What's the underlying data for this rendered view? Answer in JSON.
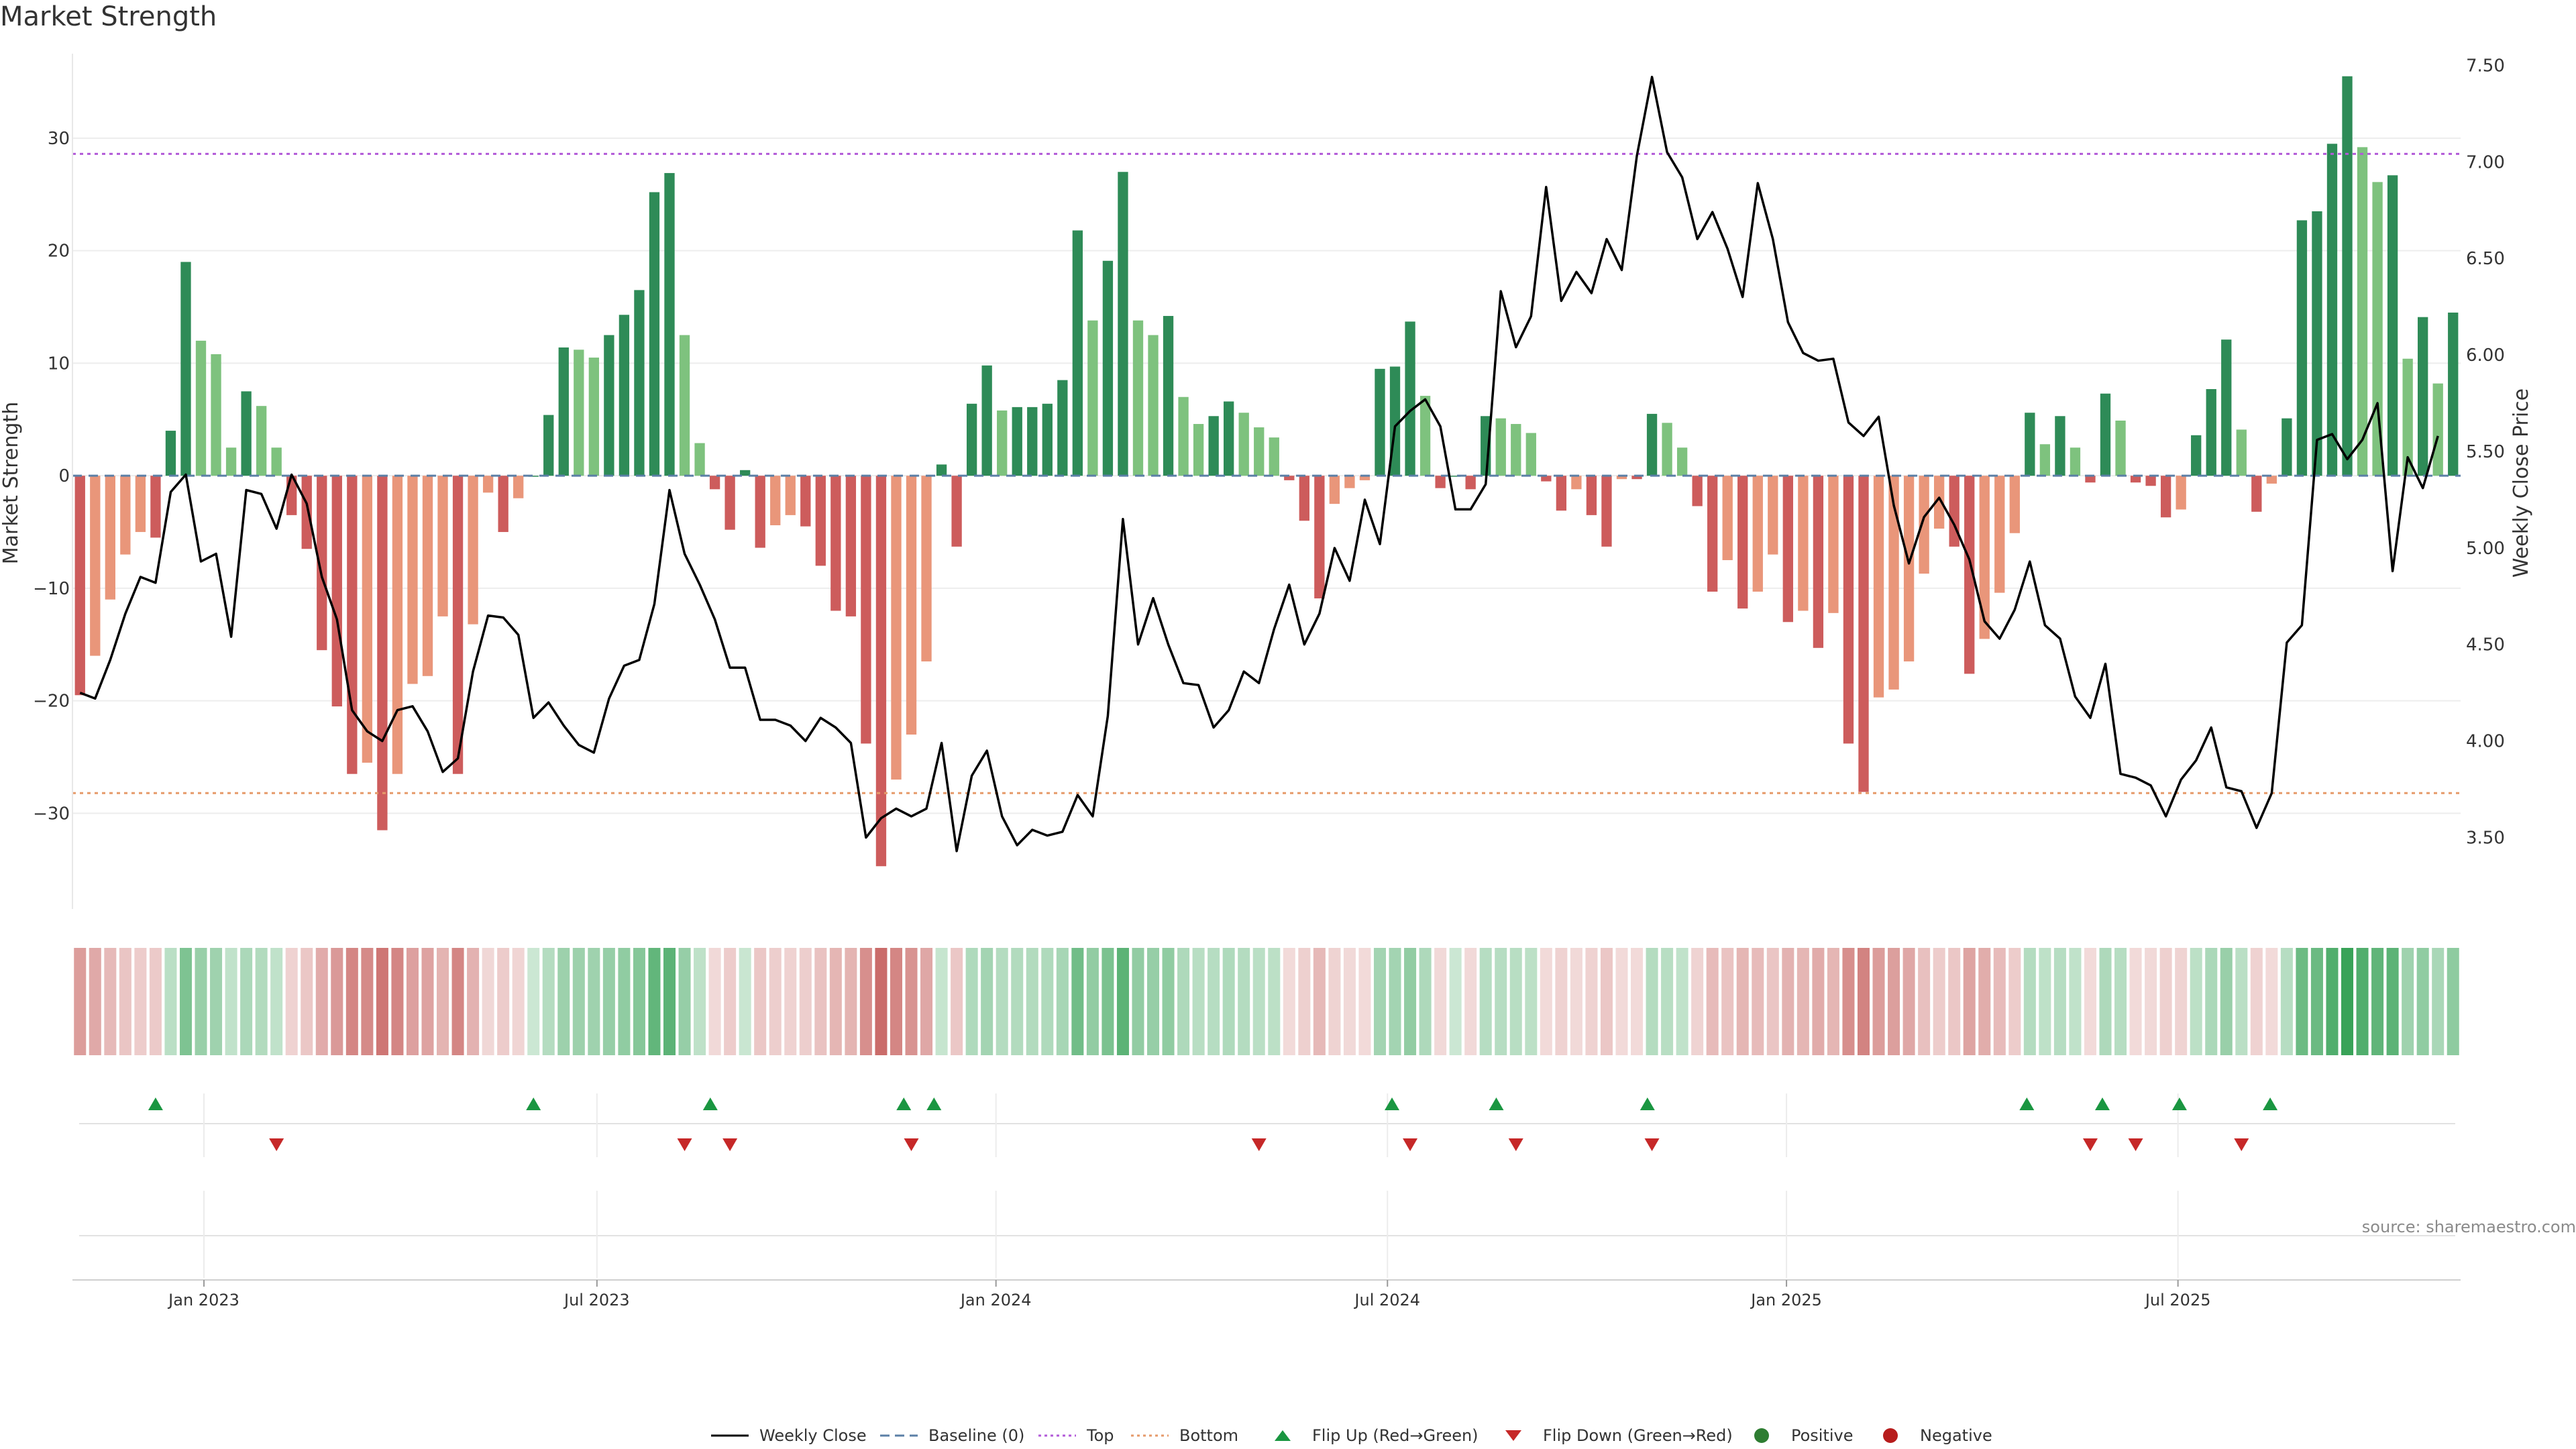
{
  "title": "Market Strength",
  "source_note": "source: sharemaestro.com",
  "legend": [
    {
      "key": "weekly_close",
      "label": "Weekly Close",
      "icon": "solid-line",
      "color": "#000000"
    },
    {
      "key": "baseline",
      "label": "Baseline (0)",
      "icon": "dashed-line",
      "color": "#5b7fa6"
    },
    {
      "key": "top",
      "label": "Top",
      "icon": "dotted-line",
      "color": "#b25ad8"
    },
    {
      "key": "bottom",
      "label": "Bottom",
      "icon": "dotted-line",
      "color": "#e69a6a"
    },
    {
      "key": "flip_up",
      "label": "Flip Up (Red→Green)",
      "icon": "triangle-up",
      "color": "#1a9641"
    },
    {
      "key": "flip_down",
      "label": "Flip Down (Green→Red)",
      "icon": "triangle-down",
      "color": "#c62828"
    },
    {
      "key": "positive",
      "label": "Positive",
      "icon": "circle",
      "color": "#2e7d32"
    },
    {
      "key": "negative",
      "label": "Negative",
      "icon": "circle",
      "color": "#b71c1c"
    }
  ],
  "chart_data": {
    "type": "bar",
    "title": "Market Strength",
    "ylabel": "Market Strength",
    "y2label": "Weekly Close Price",
    "ylim": [
      -38.5,
      38.7
    ],
    "y2lim": [
      3.13,
      7.63
    ],
    "yticks": [
      -30,
      -20,
      -10,
      0,
      10,
      20,
      30
    ],
    "y2ticks": [
      3.5,
      4.0,
      4.5,
      5.0,
      5.5,
      6.0,
      6.5,
      7.0,
      7.5
    ],
    "top_threshold": 28.6,
    "bottom_threshold": -28.2,
    "xticks": [
      {
        "label": "Jan 2023",
        "week": 8.7
      },
      {
        "label": "Jul 2023",
        "week": 34.7
      },
      {
        "label": "Jan 2024",
        "week": 61.1
      },
      {
        "label": "Jul 2024",
        "week": 87.0
      },
      {
        "label": "Jan 2025",
        "week": 113.4
      },
      {
        "label": "Jul 2025",
        "week": 139.3
      }
    ],
    "x_range": [
      0,
      158
    ],
    "first_week": "2022-11-06",
    "strength": [
      -19.5,
      -16,
      -11,
      -7,
      -5,
      -5.5,
      4,
      19,
      12,
      10.8,
      2.5,
      7.5,
      6.2,
      2.5,
      -3.5,
      -6.5,
      -15.5,
      -20.5,
      -26.5,
      -25.5,
      -31.5,
      -26.5,
      -18.5,
      -17.8,
      -12.5,
      -26.5,
      -13.2,
      -1.5,
      -5,
      -2,
      0,
      5.4,
      11.4,
      11.2,
      10.5,
      12.5,
      14.3,
      16.5,
      25.2,
      26.9,
      12.5,
      2.9,
      -1.2,
      -4.8,
      0.5,
      -6.4,
      -4.4,
      -3.5,
      -4.5,
      -8,
      -12,
      -12.5,
      -23.8,
      -34.7,
      -27,
      -23,
      -16.5,
      1,
      -6.3,
      6.4,
      9.8,
      5.8,
      6.1,
      6.1,
      6.4,
      8.5,
      21.8,
      13.8,
      19.1,
      27,
      13.8,
      12.5,
      14.2,
      7,
      4.6,
      5.3,
      6.6,
      5.6,
      4.3,
      3.4,
      -0.4,
      -4,
      -10.9,
      -2.5,
      -1.1,
      -0.4,
      9.5,
      9.7,
      13.7,
      7.1,
      -1.1,
      0,
      -1.2,
      5.3,
      5.1,
      4.6,
      3.8,
      -0.5,
      -3.1,
      -1.2,
      -3.5,
      -6.3,
      -0.3,
      -0.3,
      5.5,
      4.7,
      2.5,
      -2.7,
      -10.3,
      -7.5,
      -11.8,
      -10.3,
      -7,
      -13,
      -12,
      -15.3,
      -12.2,
      -23.8,
      -28.1,
      -19.7,
      -19,
      -16.5,
      -8.7,
      -4.7,
      -6.3,
      -17.6,
      -14.5,
      -10.4,
      -5.1,
      5.6,
      2.8,
      5.3,
      2.5,
      -0.6,
      7.3,
      4.9,
      -0.6,
      -0.9,
      -3.7,
      -3,
      3.6,
      7.7,
      12.1,
      4.1,
      -3.2,
      -0.7,
      5.1,
      22.7,
      23.5,
      29.5,
      35.5,
      29.2,
      26.1,
      26.7,
      10.4,
      14.1,
      8.2,
      14.5
    ],
    "strength_colors_by_sign": {
      "positive_strong": "#2e8b57",
      "positive_weak": "#7ec27e",
      "negative_strong": "#cd5c5c",
      "negative_weak": "#e9967a"
    },
    "weekly_close": [
      4.25,
      4.22,
      4.42,
      4.66,
      4.85,
      4.82,
      5.29,
      5.38,
      4.93,
      4.97,
      4.54,
      5.3,
      5.28,
      5.1,
      5.38,
      5.23,
      4.85,
      4.63,
      4.16,
      4.05,
      4.0,
      4.16,
      4.18,
      4.05,
      3.84,
      3.91,
      4.36,
      4.65,
      4.64,
      4.55,
      4.12,
      4.2,
      4.08,
      3.98,
      3.94,
      4.22,
      4.39,
      4.42,
      4.71,
      5.3,
      4.97,
      4.81,
      4.63,
      4.38,
      4.38,
      4.11,
      4.11,
      4.08,
      4.0,
      4.12,
      4.07,
      3.99,
      3.5,
      3.6,
      3.65,
      3.61,
      3.65,
      3.99,
      3.43,
      3.82,
      3.95,
      3.61,
      3.46,
      3.54,
      3.51,
      3.53,
      3.72,
      3.61,
      4.13,
      5.15,
      4.5,
      4.74,
      4.5,
      4.3,
      4.29,
      4.07,
      4.16,
      4.36,
      4.3,
      4.58,
      4.81,
      4.5,
      4.66,
      5.0,
      4.83,
      5.25,
      5.02,
      5.63,
      5.71,
      5.77,
      5.63,
      5.2,
      5.2,
      5.33,
      6.33,
      6.04,
      6.2,
      6.87,
      6.28,
      6.43,
      6.32,
      6.6,
      6.44,
      7.03,
      7.44,
      7.05,
      6.92,
      6.6,
      6.74,
      6.55,
      6.3,
      6.89,
      6.6,
      6.17,
      6.01,
      5.97,
      5.98,
      5.65,
      5.58,
      5.68,
      5.22,
      4.92,
      5.16,
      5.26,
      5.12,
      4.94,
      4.62,
      4.53,
      4.68,
      4.93,
      4.6,
      4.53,
      4.23,
      4.12,
      4.4,
      3.83,
      3.81,
      3.77,
      3.61,
      3.8,
      3.9,
      4.07,
      3.76,
      3.74,
      3.55,
      3.73,
      4.51,
      4.6,
      5.56,
      5.59,
      5.46,
      5.56,
      5.75,
      4.88,
      5.47,
      5.31,
      5.58
    ],
    "heat_strip": {
      "description": "weekly color strip mirroring strength sign and magnitude"
    },
    "flip_up_weeks": [
      5.5,
      30.5,
      42.2,
      55,
      57,
      87.3,
      94.2,
      104.2,
      129.3,
      134.3,
      139.4,
      145.4
    ],
    "flip_down_weeks": [
      13.5,
      40.5,
      43.5,
      55.5,
      78.5,
      88.5,
      95.5,
      104.5,
      133.5,
      136.5,
      143.5
    ]
  }
}
